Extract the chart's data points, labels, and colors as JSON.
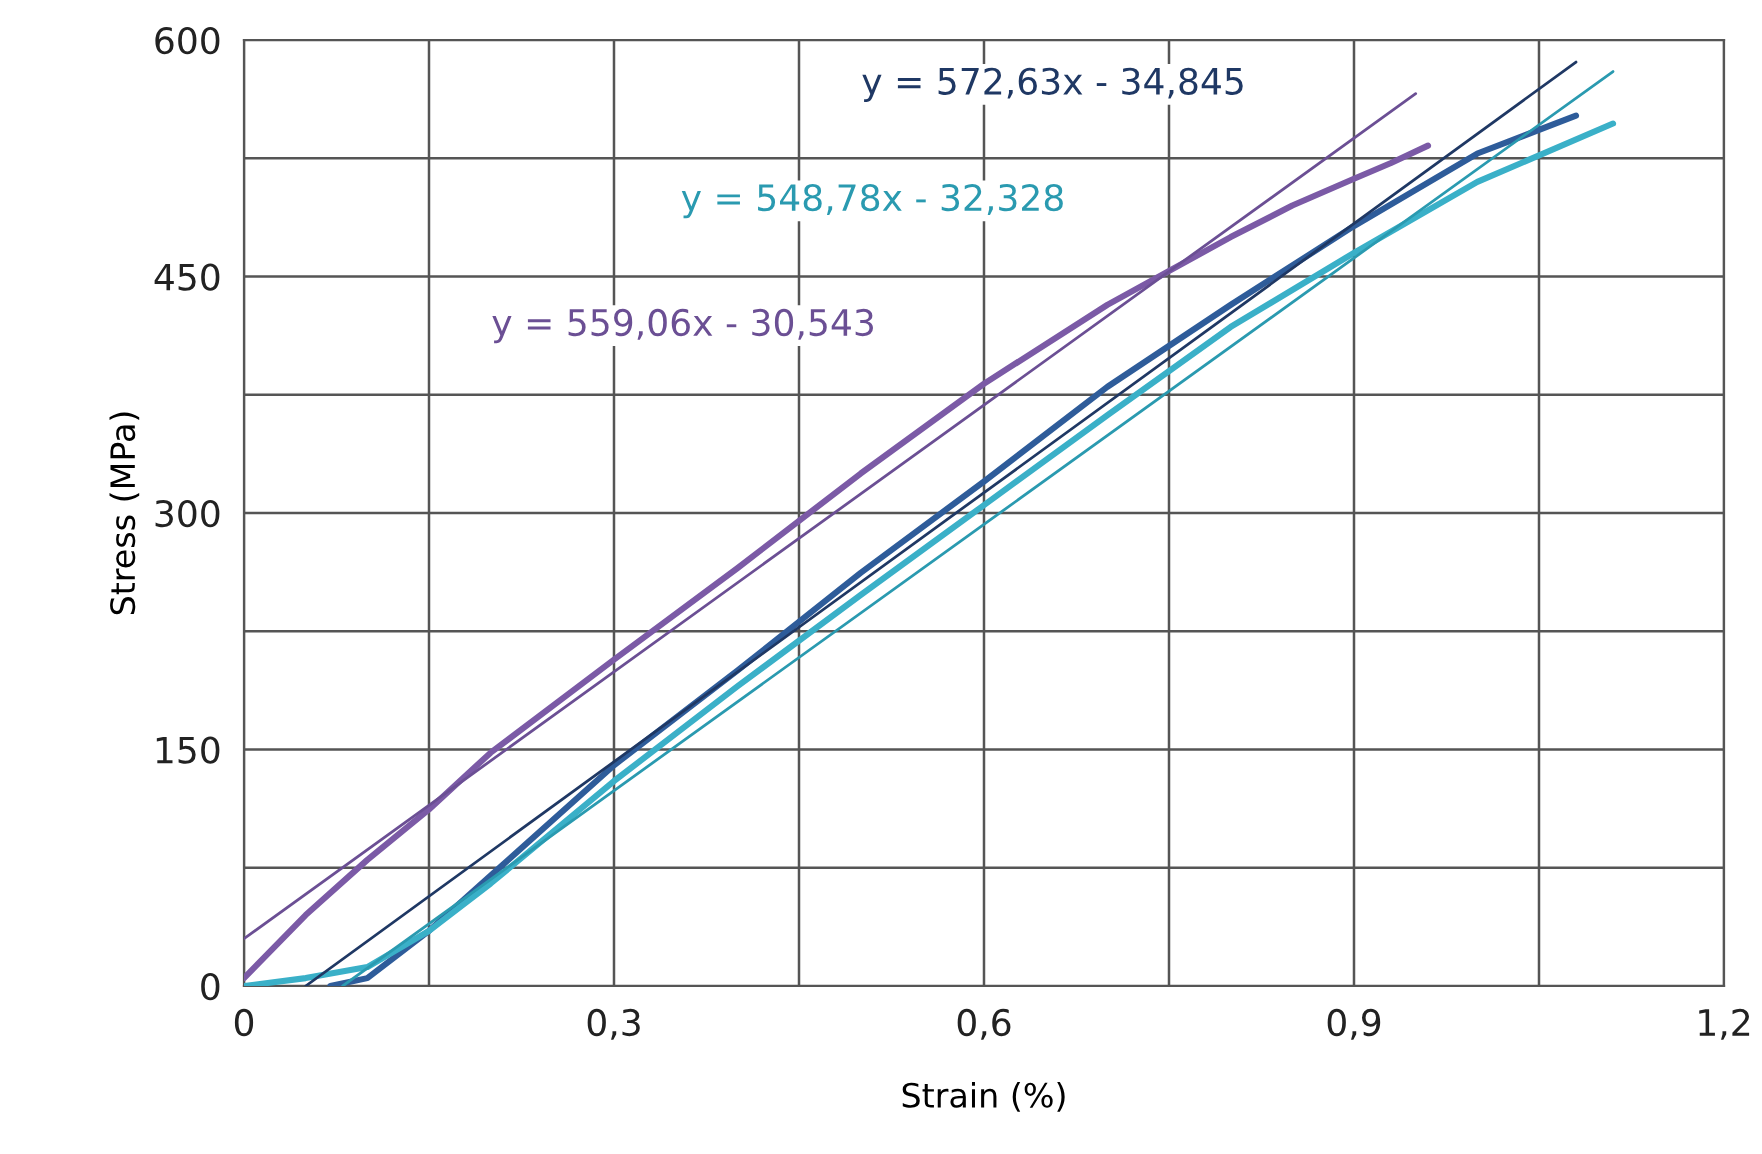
{
  "chart_data": {
    "type": "line",
    "xlabel": "Strain (%)",
    "ylabel": "Stress (MPa)",
    "xlim": [
      0,
      1.2
    ],
    "ylim": [
      0,
      600
    ],
    "xticks": [
      0,
      {
        "value": 0.15,
        "label": null
      },
      {
        "value": 0.3,
        "label": "0,3"
      },
      {
        "value": 0.45,
        "label": null
      },
      {
        "value": 0.6,
        "label": "0,6"
      },
      {
        "value": 0.75,
        "label": null
      },
      {
        "value": 0.9,
        "label": "0,9"
      },
      {
        "value": 1.05,
        "label": null
      },
      {
        "value": 1.2,
        "label": "1,2"
      }
    ],
    "yticks": [
      0,
      {
        "value": 75,
        "label": null
      },
      150,
      {
        "value": 225,
        "label": null
      },
      300,
      {
        "value": 375,
        "label": null
      },
      450,
      {
        "value": 525,
        "label": null
      },
      600
    ],
    "grid": true,
    "marker": "none",
    "line_style": "solid",
    "series": [
      {
        "color": "#7b5aa6",
        "x": [
          0,
          0.05,
          0.1,
          0.15,
          0.2,
          0.3,
          0.4,
          0.5,
          0.6,
          0.7,
          0.8,
          0.85,
          0.9,
          0.93,
          0.96
        ],
        "values": [
          5,
          45,
          80,
          112,
          148,
          207,
          265,
          325,
          382,
          432,
          475,
          495,
          512,
          522,
          533
        ]
      },
      {
        "color": "#2e5c9a",
        "x": [
          0.07,
          0.1,
          0.15,
          0.2,
          0.3,
          0.4,
          0.5,
          0.6,
          0.7,
          0.8,
          0.9,
          1.0,
          1.08
        ],
        "values": [
          0,
          5,
          35,
          70,
          140,
          200,
          262,
          320,
          380,
          432,
          482,
          528,
          552
        ]
      },
      {
        "color": "#3ab0c8",
        "x": [
          0,
          0.05,
          0.1,
          0.15,
          0.2,
          0.3,
          0.4,
          0.5,
          0.6,
          0.7,
          0.8,
          0.9,
          1.0,
          1.11
        ],
        "values": [
          0,
          5,
          12,
          35,
          65,
          130,
          190,
          248,
          305,
          362,
          418,
          465,
          510,
          547
        ]
      },
      {
        "color": "#1f3864",
        "x": [
          0.05,
          1.08
        ],
        "values": [
          0,
          586
        ]
      },
      {
        "color": "#2a9ab0",
        "x": [
          0.08,
          1.11
        ],
        "values": [
          0,
          580
        ]
      },
      {
        "color": "#6b4f94",
        "x": [
          0,
          0.95
        ],
        "values": [
          30,
          566
        ]
      }
    ],
    "annotations": [
      "y = 572,63x - 34,845",
      "y = 548,78x - 32,328",
      "y = 559,06x - 30,543"
    ]
  }
}
